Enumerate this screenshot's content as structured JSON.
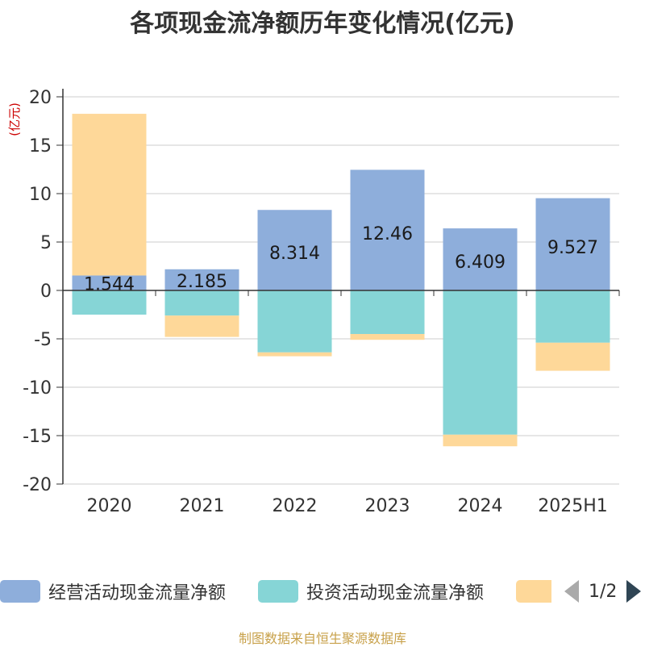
{
  "title": "各项现金流净额历年变化情况(亿元)",
  "footer": "制图数据来自恒生聚源数据库",
  "legend": {
    "items": [
      {
        "label": "经营活动现金流量净额",
        "color": "#8eaedb"
      },
      {
        "label": "投资活动现金流量净额",
        "color": "#86d5d6"
      },
      {
        "label": "",
        "color": "#fed899"
      }
    ],
    "page": "1/2"
  },
  "chart_data": {
    "type": "bar",
    "stacked": true,
    "categories": [
      "2020",
      "2021",
      "2022",
      "2023",
      "2024",
      "2025H1"
    ],
    "ylabel": "(亿元)",
    "ylim": [
      -20,
      20
    ],
    "yticks": [
      20,
      15,
      10,
      5,
      0,
      -5,
      -10,
      -15,
      -20
    ],
    "grid": true,
    "legend_position": "bottom",
    "series": [
      {
        "name": "经营活动现金流量净额",
        "color": "#8eaedb",
        "values": [
          1.544,
          2.185,
          8.314,
          12.46,
          6.409,
          9.527
        ],
        "labels": [
          "1.544",
          "2.185",
          "8.314",
          "12.46",
          "6.409",
          "9.527"
        ]
      },
      {
        "color": "#86d5d6",
        "values": [
          -2.5,
          -2.6,
          -6.4,
          -4.5,
          -14.9,
          -5.4
        ]
      },
      {
        "color": "#fed899",
        "values": [
          16.7,
          -2.2,
          -0.4,
          -0.6,
          -1.2,
          -2.9
        ]
      }
    ]
  }
}
